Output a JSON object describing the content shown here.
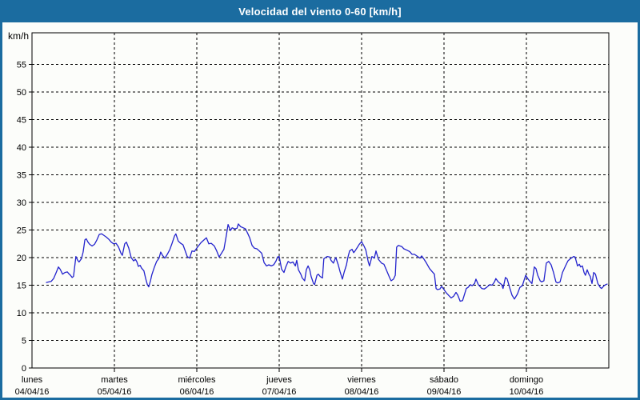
{
  "window": {
    "title": "Velocidad del viento 0-60 [km/h]"
  },
  "colors": {
    "titlebar_bg": "#1b6ca0",
    "title_text": "#ffffff",
    "border": "#1b6ca0",
    "background": "#fcfdfa",
    "line": "#2323cd",
    "grid": "#000000",
    "frame": "#000000",
    "label_text": "#000000"
  },
  "chart_data": {
    "type": "line",
    "title": "Velocidad del viento 0-60 [km/h]",
    "unit_label": "km/h",
    "ylabel": "km/h",
    "xlabel": "",
    "ylim": [
      0,
      60
    ],
    "yticks": [
      0,
      5,
      10,
      15,
      20,
      25,
      30,
      35,
      40,
      45,
      50,
      55
    ],
    "grid": "dashed",
    "legend": "none",
    "x_axis_days": [
      {
        "name": "lunes",
        "date": "04/04/16"
      },
      {
        "name": "martes",
        "date": "05/04/16"
      },
      {
        "name": "miércoles",
        "date": "06/04/16"
      },
      {
        "name": "jueves",
        "date": "07/04/16"
      },
      {
        "name": "viernes",
        "date": "08/04/16"
      },
      {
        "name": "sábado",
        "date": "09/04/16"
      },
      {
        "name": "domingo",
        "date": "10/04/16"
      }
    ],
    "series": [
      {
        "name": "Velocidad del viento",
        "x_unit": "hours_since_monday_00h",
        "y_unit": "km/h",
        "points": [
          [
            4.2,
            15.5
          ],
          [
            4.9,
            15.6
          ],
          [
            5.6,
            15.7
          ],
          [
            6.3,
            16.2
          ],
          [
            7,
            17.2
          ],
          [
            7.7,
            18.3
          ],
          [
            8.2,
            17.9
          ],
          [
            8.9,
            17
          ],
          [
            9.6,
            17.3
          ],
          [
            10.3,
            17.4
          ],
          [
            10.7,
            17.1
          ],
          [
            11.2,
            16.8
          ],
          [
            11.7,
            16.4
          ],
          [
            12.1,
            16.6
          ],
          [
            12.8,
            20.2
          ],
          [
            13.3,
            19.5
          ],
          [
            13.7,
            19.2
          ],
          [
            14.4,
            19.8
          ],
          [
            14.9,
            21
          ],
          [
            15.4,
            23.2
          ],
          [
            15.8,
            23.4
          ],
          [
            16.3,
            22.8
          ],
          [
            16.8,
            22.4
          ],
          [
            17.5,
            22.1
          ],
          [
            18.2,
            22.4
          ],
          [
            18.9,
            23.2
          ],
          [
            19.6,
            24.2
          ],
          [
            20.3,
            24.3
          ],
          [
            21,
            24
          ],
          [
            21.7,
            23.7
          ],
          [
            22.4,
            23.3
          ],
          [
            23.1,
            22.8
          ],
          [
            23.8,
            22.5
          ],
          [
            24.5,
            22.6
          ],
          [
            25.2,
            21.9
          ],
          [
            25.9,
            20.8
          ],
          [
            26.3,
            20.4
          ],
          [
            27,
            22.5
          ],
          [
            27.5,
            22.8
          ],
          [
            28.2,
            21.7
          ],
          [
            28.9,
            20
          ],
          [
            29.6,
            19.4
          ],
          [
            30.1,
            19.7
          ],
          [
            30.5,
            19.3
          ],
          [
            31,
            18.4
          ],
          [
            31.5,
            18.6
          ],
          [
            31.9,
            18.1
          ],
          [
            32.6,
            17.6
          ],
          [
            33.1,
            16.2
          ],
          [
            33.6,
            15.1
          ],
          [
            34,
            14.7
          ],
          [
            34.5,
            15.8
          ],
          [
            34.9,
            16.9
          ],
          [
            35.6,
            18.2
          ],
          [
            36.3,
            19.3
          ],
          [
            37,
            19.9
          ],
          [
            37.5,
            21
          ],
          [
            38,
            20.4
          ],
          [
            38.7,
            19.9
          ],
          [
            39.4,
            20.6
          ],
          [
            40.1,
            21.4
          ],
          [
            40.8,
            22.6
          ],
          [
            41.5,
            23.9
          ],
          [
            41.9,
            24.3
          ],
          [
            42.6,
            23
          ],
          [
            43.3,
            22.6
          ],
          [
            44,
            22.3
          ],
          [
            44.7,
            21.1
          ],
          [
            45.2,
            20.2
          ],
          [
            45.9,
            19.9
          ],
          [
            46.6,
            21.2
          ],
          [
            47.3,
            21.1
          ],
          [
            48.2,
            21.9
          ],
          [
            49.2,
            22.7
          ],
          [
            50.1,
            23.2
          ],
          [
            50.8,
            23.6
          ],
          [
            51.5,
            22.5
          ],
          [
            52.2,
            22.6
          ],
          [
            53.1,
            22.1
          ],
          [
            53.8,
            21.2
          ],
          [
            54.5,
            20.1
          ],
          [
            55.2,
            20.8
          ],
          [
            55.9,
            21.5
          ],
          [
            56.6,
            24
          ],
          [
            57.1,
            26
          ],
          [
            57.8,
            24.9
          ],
          [
            58.3,
            25.4
          ],
          [
            59,
            25.2
          ],
          [
            59.7,
            25.3
          ],
          [
            60.1,
            26.1
          ],
          [
            60.8,
            25.6
          ],
          [
            61.5,
            25.4
          ],
          [
            62.2,
            25.2
          ],
          [
            62.9,
            24.3
          ],
          [
            63.4,
            23.6
          ],
          [
            64.1,
            22.2
          ],
          [
            64.8,
            21.7
          ],
          [
            65.5,
            21.6
          ],
          [
            66.2,
            21.2
          ],
          [
            66.9,
            20.8
          ],
          [
            67.6,
            19.1
          ],
          [
            68.3,
            18.5
          ],
          [
            69,
            18.7
          ],
          [
            69.7,
            18.5
          ],
          [
            70.4,
            18.7
          ],
          [
            71.1,
            19.4
          ],
          [
            71.5,
            20.1
          ],
          [
            72,
            20.2
          ],
          [
            72.7,
            17.9
          ],
          [
            73.4,
            17.3
          ],
          [
            73.9,
            18.3
          ],
          [
            74.6,
            19.3
          ],
          [
            75.3,
            19
          ],
          [
            76,
            19.2
          ],
          [
            76.7,
            18.5
          ],
          [
            77.1,
            19.5
          ],
          [
            77.6,
            17.8
          ],
          [
            78.3,
            17
          ],
          [
            78.7,
            16.3
          ],
          [
            79.4,
            15.8
          ],
          [
            79.9,
            17.8
          ],
          [
            80.4,
            18.5
          ],
          [
            80.9,
            17.8
          ],
          [
            81.3,
            16.6
          ],
          [
            82,
            15.3
          ],
          [
            82.3,
            15.1
          ],
          [
            83,
            16.8
          ],
          [
            83.4,
            17
          ],
          [
            83.9,
            16.6
          ],
          [
            84.6,
            16.3
          ],
          [
            85,
            19.8
          ],
          [
            85.5,
            20
          ],
          [
            86,
            20.2
          ],
          [
            86.7,
            20.1
          ],
          [
            87.1,
            19.5
          ],
          [
            87.8,
            19
          ],
          [
            88.3,
            19.8
          ],
          [
            88.5,
            20
          ],
          [
            89.2,
            18.7
          ],
          [
            89.7,
            17.5
          ],
          [
            90.4,
            16.1
          ],
          [
            90.9,
            17.3
          ],
          [
            91.6,
            18.7
          ],
          [
            92,
            20
          ],
          [
            92.5,
            21.2
          ],
          [
            93.2,
            21.5
          ],
          [
            93.7,
            20.9
          ],
          [
            94.1,
            21.2
          ],
          [
            94.8,
            21.9
          ],
          [
            95.3,
            22.4
          ],
          [
            96,
            22.9
          ],
          [
            96.7,
            22.1
          ],
          [
            97.2,
            21.4
          ],
          [
            97.9,
            19.3
          ],
          [
            98.3,
            18.5
          ],
          [
            99,
            20.2
          ],
          [
            99.7,
            19.9
          ],
          [
            100.2,
            21.2
          ],
          [
            100.9,
            19.7
          ],
          [
            101.8,
            19
          ],
          [
            102.5,
            18.8
          ],
          [
            103.2,
            17.8
          ],
          [
            104.2,
            16.3
          ],
          [
            104.6,
            15.8
          ],
          [
            105.3,
            16.1
          ],
          [
            105.8,
            16.8
          ],
          [
            106.2,
            21.9
          ],
          [
            106.7,
            22.2
          ],
          [
            107.7,
            22
          ],
          [
            108.3,
            21.6
          ],
          [
            109,
            21.4
          ],
          [
            110,
            21.1
          ],
          [
            110.7,
            20.6
          ],
          [
            111.4,
            20.6
          ],
          [
            112.3,
            20.2
          ],
          [
            113,
            19.9
          ],
          [
            113.5,
            20.3
          ],
          [
            114.2,
            19.7
          ],
          [
            114.9,
            19
          ],
          [
            115.8,
            18
          ],
          [
            116.5,
            17.5
          ],
          [
            117.2,
            17
          ],
          [
            117.7,
            14.4
          ],
          [
            118.1,
            14.2
          ],
          [
            118.8,
            14.3
          ],
          [
            119.3,
            14.8
          ],
          [
            120,
            14.2
          ],
          [
            120.7,
            13.6
          ],
          [
            121.6,
            13
          ],
          [
            122.1,
            12.7
          ],
          [
            122.8,
            13
          ],
          [
            123.5,
            13.7
          ],
          [
            124,
            13.2
          ],
          [
            124.7,
            12.1
          ],
          [
            125.4,
            12.2
          ],
          [
            125.8,
            13
          ],
          [
            126.5,
            14.4
          ],
          [
            127,
            14.6
          ],
          [
            127.7,
            15.1
          ],
          [
            128.2,
            14.9
          ],
          [
            128.9,
            15.3
          ],
          [
            129.3,
            16.1
          ],
          [
            130,
            15.1
          ],
          [
            131,
            14.4
          ],
          [
            131.7,
            14.3
          ],
          [
            132.4,
            14.6
          ],
          [
            133.3,
            15.1
          ],
          [
            134,
            15
          ],
          [
            134.7,
            15.6
          ],
          [
            135.1,
            16.2
          ],
          [
            135.8,
            15.6
          ],
          [
            136.8,
            15.1
          ],
          [
            137.2,
            14.4
          ],
          [
            137.9,
            16.4
          ],
          [
            138.4,
            16.1
          ],
          [
            139.1,
            14.6
          ],
          [
            139.8,
            13.2
          ],
          [
            140.5,
            12.5
          ],
          [
            141.4,
            13.4
          ],
          [
            142.1,
            14.6
          ],
          [
            142.8,
            14.9
          ],
          [
            143.8,
            16.8
          ],
          [
            144.5,
            16.1
          ],
          [
            145.2,
            15.6
          ],
          [
            145.6,
            15.3
          ],
          [
            146.3,
            18.3
          ],
          [
            146.8,
            18
          ],
          [
            147.3,
            16.8
          ],
          [
            148,
            15.8
          ],
          [
            148.4,
            15.6
          ],
          [
            149.1,
            15.8
          ],
          [
            149.8,
            19
          ],
          [
            150.5,
            19.3
          ],
          [
            151.2,
            18.7
          ],
          [
            151.9,
            17.3
          ],
          [
            152.6,
            15.6
          ],
          [
            153.1,
            15.4
          ],
          [
            153.8,
            15.6
          ],
          [
            154.5,
            17.3
          ],
          [
            155.4,
            18.5
          ],
          [
            156.1,
            19.4
          ],
          [
            156.8,
            19.8
          ],
          [
            157.8,
            20.2
          ],
          [
            158.2,
            20.1
          ],
          [
            158.9,
            18.5
          ],
          [
            159.4,
            18.8
          ],
          [
            159.8,
            18.3
          ],
          [
            160.3,
            18.5
          ],
          [
            160.8,
            17.3
          ],
          [
            161.2,
            16.8
          ],
          [
            161.7,
            17.8
          ],
          [
            162.2,
            17
          ],
          [
            162.6,
            16.6
          ],
          [
            163.1,
            15.3
          ],
          [
            163.6,
            17.3
          ],
          [
            164.1,
            17
          ],
          [
            164.8,
            15.3
          ],
          [
            165.5,
            14.6
          ],
          [
            165.9,
            14.4
          ],
          [
            166.6,
            14.9
          ],
          [
            167.1,
            15.1
          ],
          [
            167.5,
            15.2
          ]
        ]
      }
    ]
  }
}
